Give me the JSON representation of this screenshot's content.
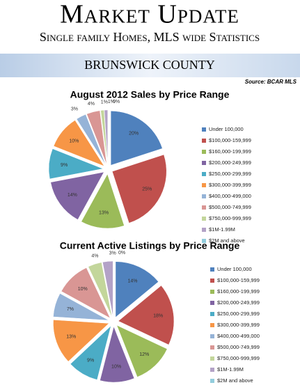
{
  "header": {
    "title": "Market Update",
    "subtitle": "Single family Homes, MLS wide Statistics",
    "band": "BRUNSWICK COUNTY",
    "source": "Source: BCAR MLS"
  },
  "chart_data": [
    {
      "type": "pie",
      "title": "August 2012 Sales by Price Range",
      "categories": [
        "Under 100,000",
        "$100,000-159,999",
        "$160,000-199,999",
        "$200,000-249,999",
        "$250,000-299,999",
        "$300,000-399,999",
        "$400,000-499,000",
        "$500,000-749,999",
        "$750,000-999,999",
        "$1M-1.99M",
        "$2M and above"
      ],
      "values": [
        20,
        25,
        13,
        14,
        9,
        10,
        3,
        4,
        1,
        1,
        0
      ],
      "value_labels": [
        "20%",
        "25%",
        "13%",
        "14%",
        "9%",
        "10%",
        "3%",
        "4%",
        "1%",
        "1%",
        "0%"
      ],
      "colors": [
        "#4f81bd",
        "#c0504d",
        "#9bbb59",
        "#8064a2",
        "#4bacc6",
        "#f79646",
        "#95b3d7",
        "#d99694",
        "#c3d69b",
        "#b3a2c7",
        "#93cddd"
      ]
    },
    {
      "type": "pie",
      "title": "Current Active Listings by Price Range",
      "categories": [
        "Under 100,000",
        "$100,000-159,999",
        "$160,000-199,999",
        "$200,000-249,999",
        "$250,000-299,999",
        "$300,000-399,999",
        "$400,000-499,000",
        "$500,000-749,999",
        "$750,000-999,999",
        "$1M-1.99M",
        "$2M and above"
      ],
      "values": [
        14,
        18,
        12,
        10,
        9,
        13,
        7,
        10,
        4,
        3,
        0
      ],
      "value_labels": [
        "14%",
        "18%",
        "12%",
        "10%",
        "9%",
        "13%",
        "7%",
        "10%",
        "4%",
        "3%",
        "0%"
      ],
      "colors": [
        "#4f81bd",
        "#c0504d",
        "#9bbb59",
        "#8064a2",
        "#4bacc6",
        "#f79646",
        "#95b3d7",
        "#d99694",
        "#c3d69b",
        "#b3a2c7",
        "#93cddd"
      ]
    }
  ]
}
